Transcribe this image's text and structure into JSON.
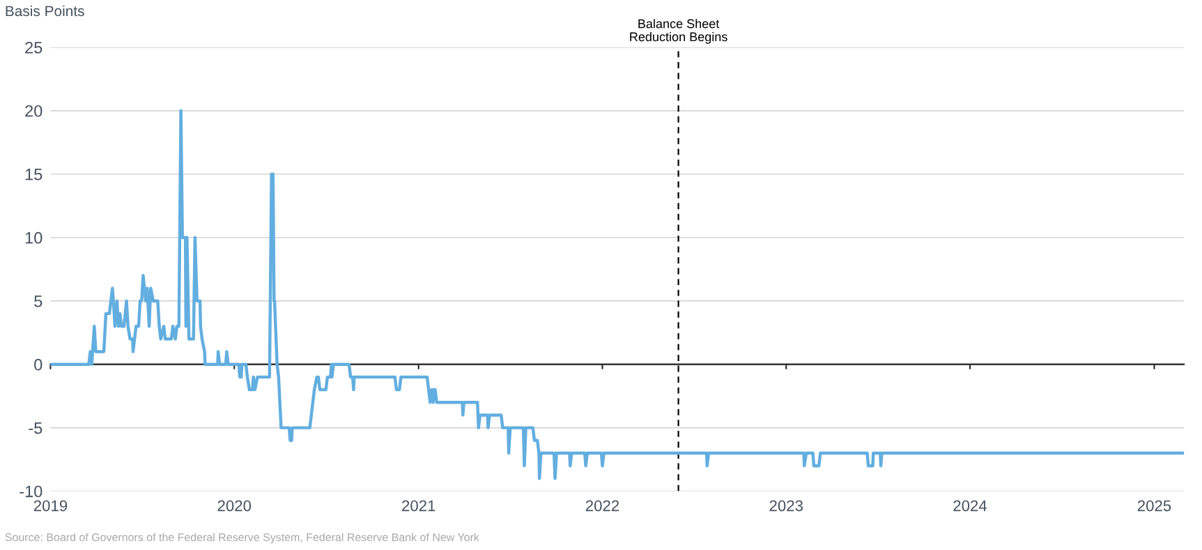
{
  "chart_data": {
    "type": "line",
    "ylabel": "Basis Points",
    "annotations": [
      "Source: Board of Governors of the Federal Reserve System, Federal Reserve Bank of New York"
    ],
    "x": [
      "2019-01-01",
      "2019-03-18",
      "2019-03-21",
      "2019-03-24",
      "2019-03-29",
      "2019-04-01",
      "2019-04-17",
      "2019-04-21",
      "2019-04-28",
      "2019-05-01",
      "2019-05-04",
      "2019-05-06",
      "2019-05-09",
      "2019-05-13",
      "2019-05-16",
      "2019-05-19",
      "2019-05-22",
      "2019-05-27",
      "2019-06-01",
      "2019-06-04",
      "2019-06-08",
      "2019-06-13",
      "2019-06-14",
      "2019-06-17",
      "2019-06-20",
      "2019-06-25",
      "2019-06-28",
      "2019-07-01",
      "2019-07-04",
      "2019-07-09",
      "2019-07-12",
      "2019-07-16",
      "2019-07-19",
      "2019-07-24",
      "2019-08-02",
      "2019-08-05",
      "2019-08-08",
      "2019-08-14",
      "2019-08-17",
      "2019-08-29",
      "2019-09-01",
      "2019-09-06",
      "2019-09-09",
      "2019-09-13",
      "2019-09-17",
      "2019-09-20",
      "2019-09-26",
      "2019-09-27",
      "2019-09-29",
      "2019-10-03",
      "2019-10-12",
      "2019-10-15",
      "2019-10-19",
      "2019-10-25",
      "2019-10-26",
      "2019-10-29",
      "2019-11-03",
      "2019-11-04",
      "2019-11-29",
      "2019-11-30",
      "2019-12-03",
      "2019-12-15",
      "2019-12-17",
      "2019-12-20",
      "2020-01-10",
      "2020-01-12",
      "2020-01-15",
      "2020-01-16",
      "2020-01-24",
      "2020-01-27",
      "2020-01-31",
      "2020-02-06",
      "2020-02-08",
      "2020-02-11",
      "2020-02-16",
      "2020-03-11",
      "2020-03-15",
      "2020-03-18",
      "2020-03-20",
      "2020-03-21",
      "2020-03-26",
      "2020-03-29",
      "2020-04-03",
      "2020-04-19",
      "2020-04-21",
      "2020-04-24",
      "2020-04-25",
      "2020-05-30",
      "2020-06-02",
      "2020-06-05",
      "2020-06-08",
      "2020-06-13",
      "2020-06-16",
      "2020-06-19",
      "2020-07-01",
      "2020-07-04",
      "2020-07-10",
      "2020-07-12",
      "2020-07-13",
      "2020-07-16",
      "2020-08-16",
      "2020-08-19",
      "2020-08-23",
      "2020-08-25",
      "2020-08-26",
      "2020-11-15",
      "2020-11-18",
      "2020-11-24",
      "2020-11-27",
      "2021-01-18",
      "2021-01-21",
      "2021-01-24",
      "2021-01-27",
      "2021-01-30",
      "2021-01-31",
      "2021-02-03",
      "2021-02-06",
      "2021-03-29",
      "2021-03-30",
      "2021-04-01",
      "2021-04-28",
      "2021-04-30",
      "2021-05-03",
      "2021-05-18",
      "2021-05-19",
      "2021-05-22",
      "2021-06-14",
      "2021-06-17",
      "2021-06-28",
      "2021-06-29",
      "2021-07-02",
      "2021-07-28",
      "2021-07-30",
      "2021-08-02",
      "2021-08-16",
      "2021-08-19",
      "2021-08-25",
      "2021-08-28",
      "2021-08-29",
      "2021-09-01",
      "2021-09-27",
      "2021-09-29",
      "2021-10-02",
      "2021-10-28",
      "2021-10-29",
      "2021-11-01",
      "2021-11-27",
      "2021-11-29",
      "2021-12-02",
      "2021-12-30",
      "2022-01-01",
      "2022-01-04",
      "2022-07-27",
      "2022-07-28",
      "2022-07-31",
      "2023-02-05",
      "2023-02-06",
      "2023-02-10",
      "2023-02-23",
      "2023-02-25",
      "2023-03-07",
      "2023-03-10",
      "2023-06-11",
      "2023-06-13",
      "2023-06-22",
      "2023-06-23",
      "2023-07-07",
      "2023-07-08",
      "2023-07-10",
      "2025-02-28"
    ],
    "series": [
      {
        "color": "#62aee0",
        "values": [
          0,
          0,
          1,
          0,
          3,
          1,
          1,
          4,
          4,
          5,
          6,
          5,
          3,
          5,
          3,
          4,
          3,
          3,
          5,
          3,
          2,
          2,
          1,
          2,
          3,
          3,
          5,
          5,
          7,
          5,
          6,
          3,
          6,
          5,
          5,
          3,
          2,
          3,
          2,
          2,
          3,
          2,
          3,
          3,
          20,
          10,
          10,
          3,
          10,
          2,
          2,
          10,
          5,
          5,
          3,
          2,
          1,
          0,
          0,
          1,
          0,
          0,
          1,
          0,
          0,
          -1,
          -1,
          0,
          0,
          -1,
          -2,
          -2,
          -1,
          -2,
          -1,
          -1,
          15,
          15,
          5,
          5,
          0,
          -1,
          -5,
          -5,
          -6,
          -6,
          -5,
          -5,
          -4,
          -3,
          -2,
          -1,
          -1,
          -2,
          -2,
          -1,
          -1,
          0,
          -1,
          0,
          0,
          -1,
          -1,
          -2,
          -1,
          -1,
          -2,
          -2,
          -1,
          -1,
          -2,
          -3,
          -2,
          -3,
          -2,
          -2,
          -3,
          -3,
          -4,
          -3,
          -3,
          -5,
          -4,
          -4,
          -5,
          -4,
          -4,
          -5,
          -5,
          -7,
          -5,
          -5,
          -8,
          -5,
          -5,
          -6,
          -6,
          -7,
          -9,
          -7,
          -7,
          -9,
          -7,
          -7,
          -8,
          -7,
          -7,
          -8,
          -7,
          -7,
          -8,
          -7,
          -7,
          -8,
          -7,
          -7,
          -8,
          -7,
          -7,
          -8,
          -8,
          -7,
          -7,
          -8,
          -8,
          -7,
          -7,
          -8,
          -7,
          -7
        ]
      }
    ],
    "xlim": [
      "2019-01-01",
      "2025-03-01"
    ],
    "xticks": [
      {
        "value": "2019-01-01",
        "label": "2019"
      },
      {
        "value": "2020-01-01",
        "label": "2020"
      },
      {
        "value": "2021-01-01",
        "label": "2021"
      },
      {
        "value": "2022-01-01",
        "label": "2022"
      },
      {
        "value": "2023-01-01",
        "label": "2023"
      },
      {
        "value": "2024-01-01",
        "label": "2024"
      },
      {
        "value": "2025-01-01",
        "label": "2025"
      }
    ],
    "ylim": [
      -10,
      25
    ],
    "yticks": [
      -10,
      -5,
      0,
      5,
      10,
      15,
      20,
      25
    ],
    "grid": "y",
    "ref_lines": [
      {
        "axis": "x",
        "value": "2022-06-01",
        "label": "Balance Sheet\nReduction Begins",
        "color": "#000000",
        "line_style": "dashed"
      }
    ]
  }
}
